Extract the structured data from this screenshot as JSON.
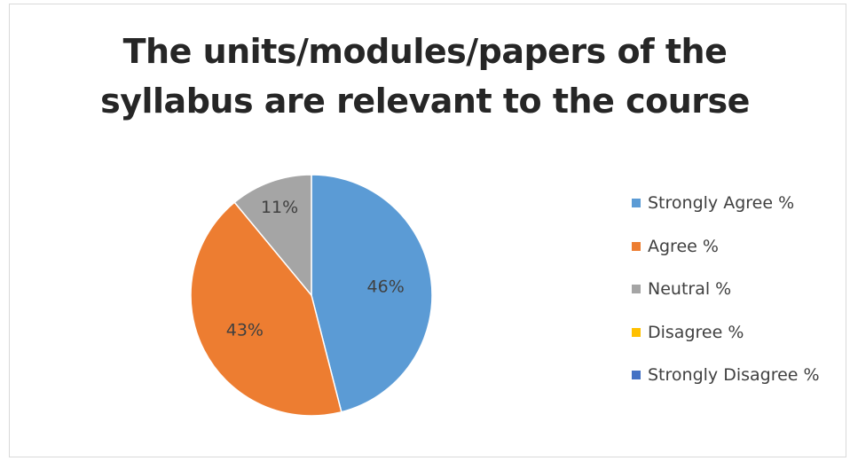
{
  "chart_data": {
    "type": "pie",
    "title_lines": [
      "The units/modules/papers of the",
      "syllabus are relevant to the course"
    ],
    "categories": [
      "Strongly Agree %",
      "Agree %",
      "Neutral %",
      "Disagree %",
      "Strongly Disagree %"
    ],
    "values": [
      46,
      43,
      11,
      0,
      0
    ],
    "data_labels": [
      "46%",
      "43%",
      "11%",
      "",
      ""
    ],
    "colors": [
      "#5B9BD5",
      "#ED7D31",
      "#A5A5A5",
      "#FFC000",
      "#4472C4"
    ],
    "legend_position": "right"
  }
}
